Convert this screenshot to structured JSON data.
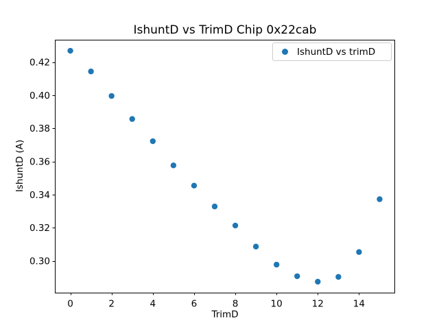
{
  "chart_data": {
    "type": "scatter",
    "title": "IshuntD vs TrimD Chip 0x22cab",
    "xlabel": "TrimD",
    "ylabel": "IshuntD (A)",
    "series": [
      {
        "name": "IshuntD vs trimD",
        "x": [
          0,
          1,
          2,
          3,
          4,
          5,
          6,
          7,
          8,
          9,
          10,
          11,
          12,
          13,
          14,
          15
        ],
        "y": [
          0.4269,
          0.4144,
          0.3996,
          0.3857,
          0.3723,
          0.3577,
          0.3455,
          0.3329,
          0.3214,
          0.3087,
          0.2978,
          0.2908,
          0.2875,
          0.2904,
          0.3054,
          0.3373
        ]
      }
    ],
    "xlim": [
      -0.75,
      15.75
    ],
    "ylim": [
      0.2808,
      0.4337
    ],
    "xticks": [
      0,
      2,
      4,
      6,
      8,
      10,
      12,
      14
    ],
    "xtick_labels": [
      "0",
      "2",
      "4",
      "6",
      "8",
      "10",
      "12",
      "14"
    ],
    "yticks": [
      0.3,
      0.32,
      0.34,
      0.36,
      0.38,
      0.4,
      0.42
    ],
    "ytick_labels": [
      "0.30",
      "0.32",
      "0.34",
      "0.36",
      "0.38",
      "0.40",
      "0.42"
    ],
    "grid": false,
    "legend_position": "upper right",
    "marker_color": "#1f77b4",
    "axis_color": "#000000",
    "legend_border_color": "#cccccc"
  }
}
